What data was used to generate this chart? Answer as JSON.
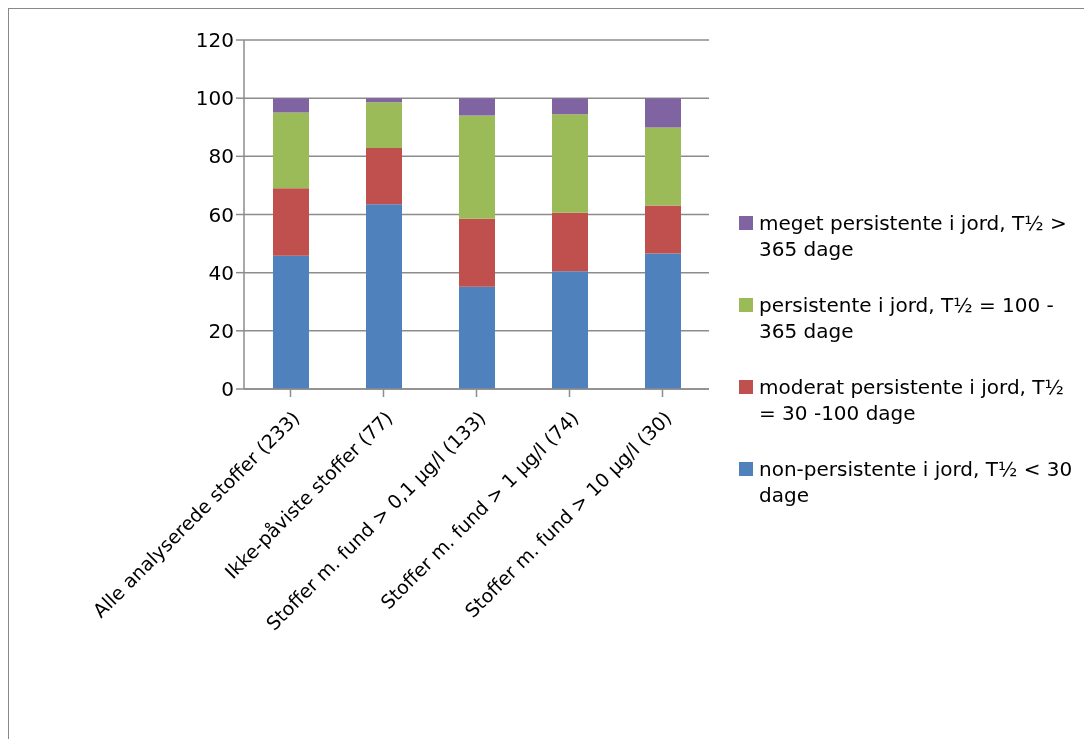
{
  "chart_data": {
    "type": "bar",
    "stacked": true,
    "categories": [
      "Alle analyserede stoffer (233)",
      "Ikke-påviste stoffer (77)",
      "Stoffer m. fund > 0,1 µg/l (133)",
      "Stoffer m. fund > 1 µg/l (74)",
      "Stoffer m. fund > 10 µg/l (30)"
    ],
    "series": [
      {
        "name": "non-persistente i jord, T½ < 30 dage",
        "color": "#4f81bd",
        "values": [
          45.8,
          63.5,
          35.2,
          40.5,
          46.6
        ]
      },
      {
        "name": "moderat persistente i jord, T½ = 30 -100 dage",
        "color": "#c0504d",
        "values": [
          23.2,
          19.4,
          23.3,
          20.1,
          16.5
        ]
      },
      {
        "name": "persistente i jord, T½ = 100 - 365 dage",
        "color": "#9bbb59",
        "values": [
          26.1,
          15.7,
          35.5,
          33.9,
          26.8
        ]
      },
      {
        "name": "meget persistente i jord, T½ > 365 dage",
        "color": "#8064a2",
        "values": [
          4.9,
          1.4,
          6.0,
          5.5,
          10.1
        ]
      }
    ],
    "ylim": [
      0,
      120
    ],
    "yticks": [
      0,
      20,
      40,
      60,
      80,
      100,
      120
    ],
    "grid": "y",
    "legend": "right"
  }
}
